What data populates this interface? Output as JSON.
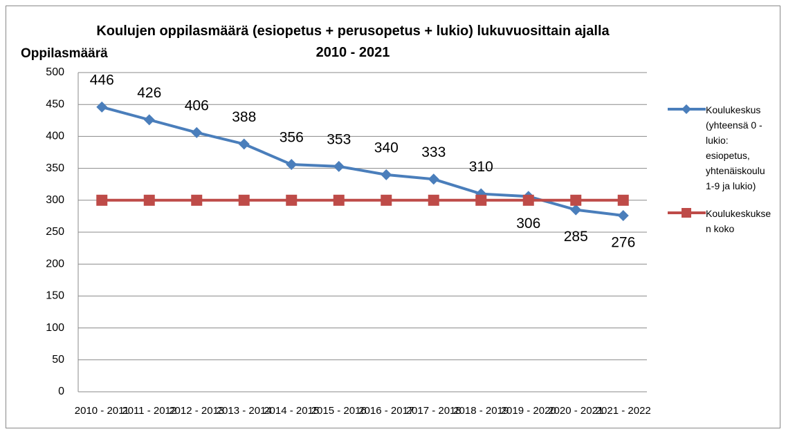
{
  "chart_data": {
    "type": "line",
    "title": "Koulujen oppilasmäärä (esiopetus + perusopetus + lukio) lukuvuosittain ajalla 2010 - 2021",
    "y_label": "Oppilasmäärä",
    "categories": [
      "2010 - 2011",
      "2011 - 2012",
      "2012 - 2013",
      "2013 - 2014",
      "2014 - 2015",
      "2015 - 2016",
      "2016 - 2017",
      "2017 - 2018",
      "2018 - 2019",
      "2019 - 2020",
      "2020 - 2021",
      "2021 - 2022"
    ],
    "series": [
      {
        "name": "Koulukeskus (yhteensä 0 - lukio: esiopetus, yhtenäiskoulu 1-9 ja lukio)",
        "color": "#4a7ebb",
        "marker": "diamond",
        "data_labels": true,
        "values": [
          446,
          426,
          406,
          388,
          356,
          353,
          340,
          333,
          310,
          306,
          285,
          276
        ]
      },
      {
        "name": "Koulukeskuksen koko",
        "color": "#be4b48",
        "marker": "square",
        "data_labels": false,
        "values": [
          300,
          300,
          300,
          300,
          300,
          300,
          300,
          300,
          300,
          300,
          300,
          300
        ]
      }
    ],
    "ylim": [
      0,
      500
    ],
    "yticks": [
      0,
      50,
      100,
      150,
      200,
      250,
      300,
      350,
      400,
      450,
      500
    ],
    "grid": true,
    "legend": "right"
  }
}
